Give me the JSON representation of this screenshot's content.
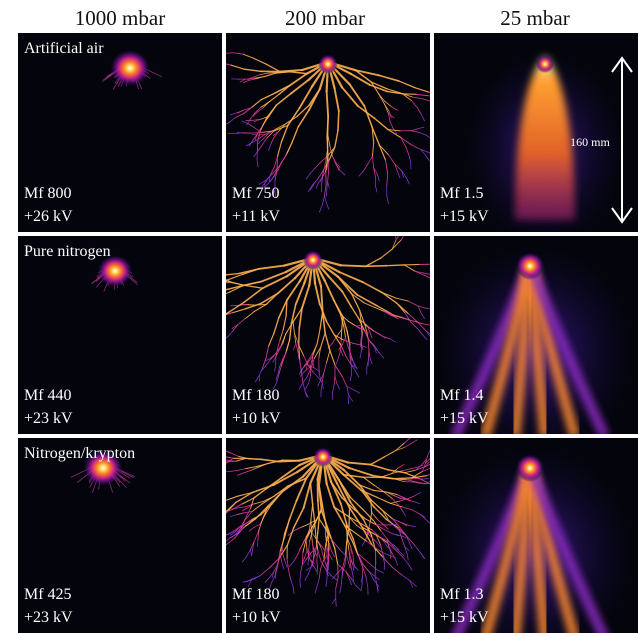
{
  "column_headers": [
    "1000 mbar",
    "200 mbar",
    "25 mbar"
  ],
  "rows": [
    {
      "gas": "Artificial air",
      "panels": [
        {
          "mf": "Mf 800",
          "voltage": "+26 kV"
        },
        {
          "mf": "Mf 750",
          "voltage": "+11 kV"
        },
        {
          "mf": "Mf 1.5",
          "voltage": "+15 kV"
        }
      ]
    },
    {
      "gas": "Pure nitrogen",
      "panels": [
        {
          "mf": "Mf 440",
          "voltage": "+23 kV"
        },
        {
          "mf": "Mf 180",
          "voltage": "+10 kV"
        },
        {
          "mf": "Mf 1.4",
          "voltage": "+15 kV"
        }
      ]
    },
    {
      "gas": "Nitrogen/krypton",
      "panels": [
        {
          "mf": "Mf 425",
          "voltage": "+23 kV"
        },
        {
          "mf": "Mf 180",
          "voltage": "+10 kV"
        },
        {
          "mf": "Mf 1.3",
          "voltage": "+15 kV"
        }
      ]
    }
  ],
  "scale_label": "160 mm"
}
